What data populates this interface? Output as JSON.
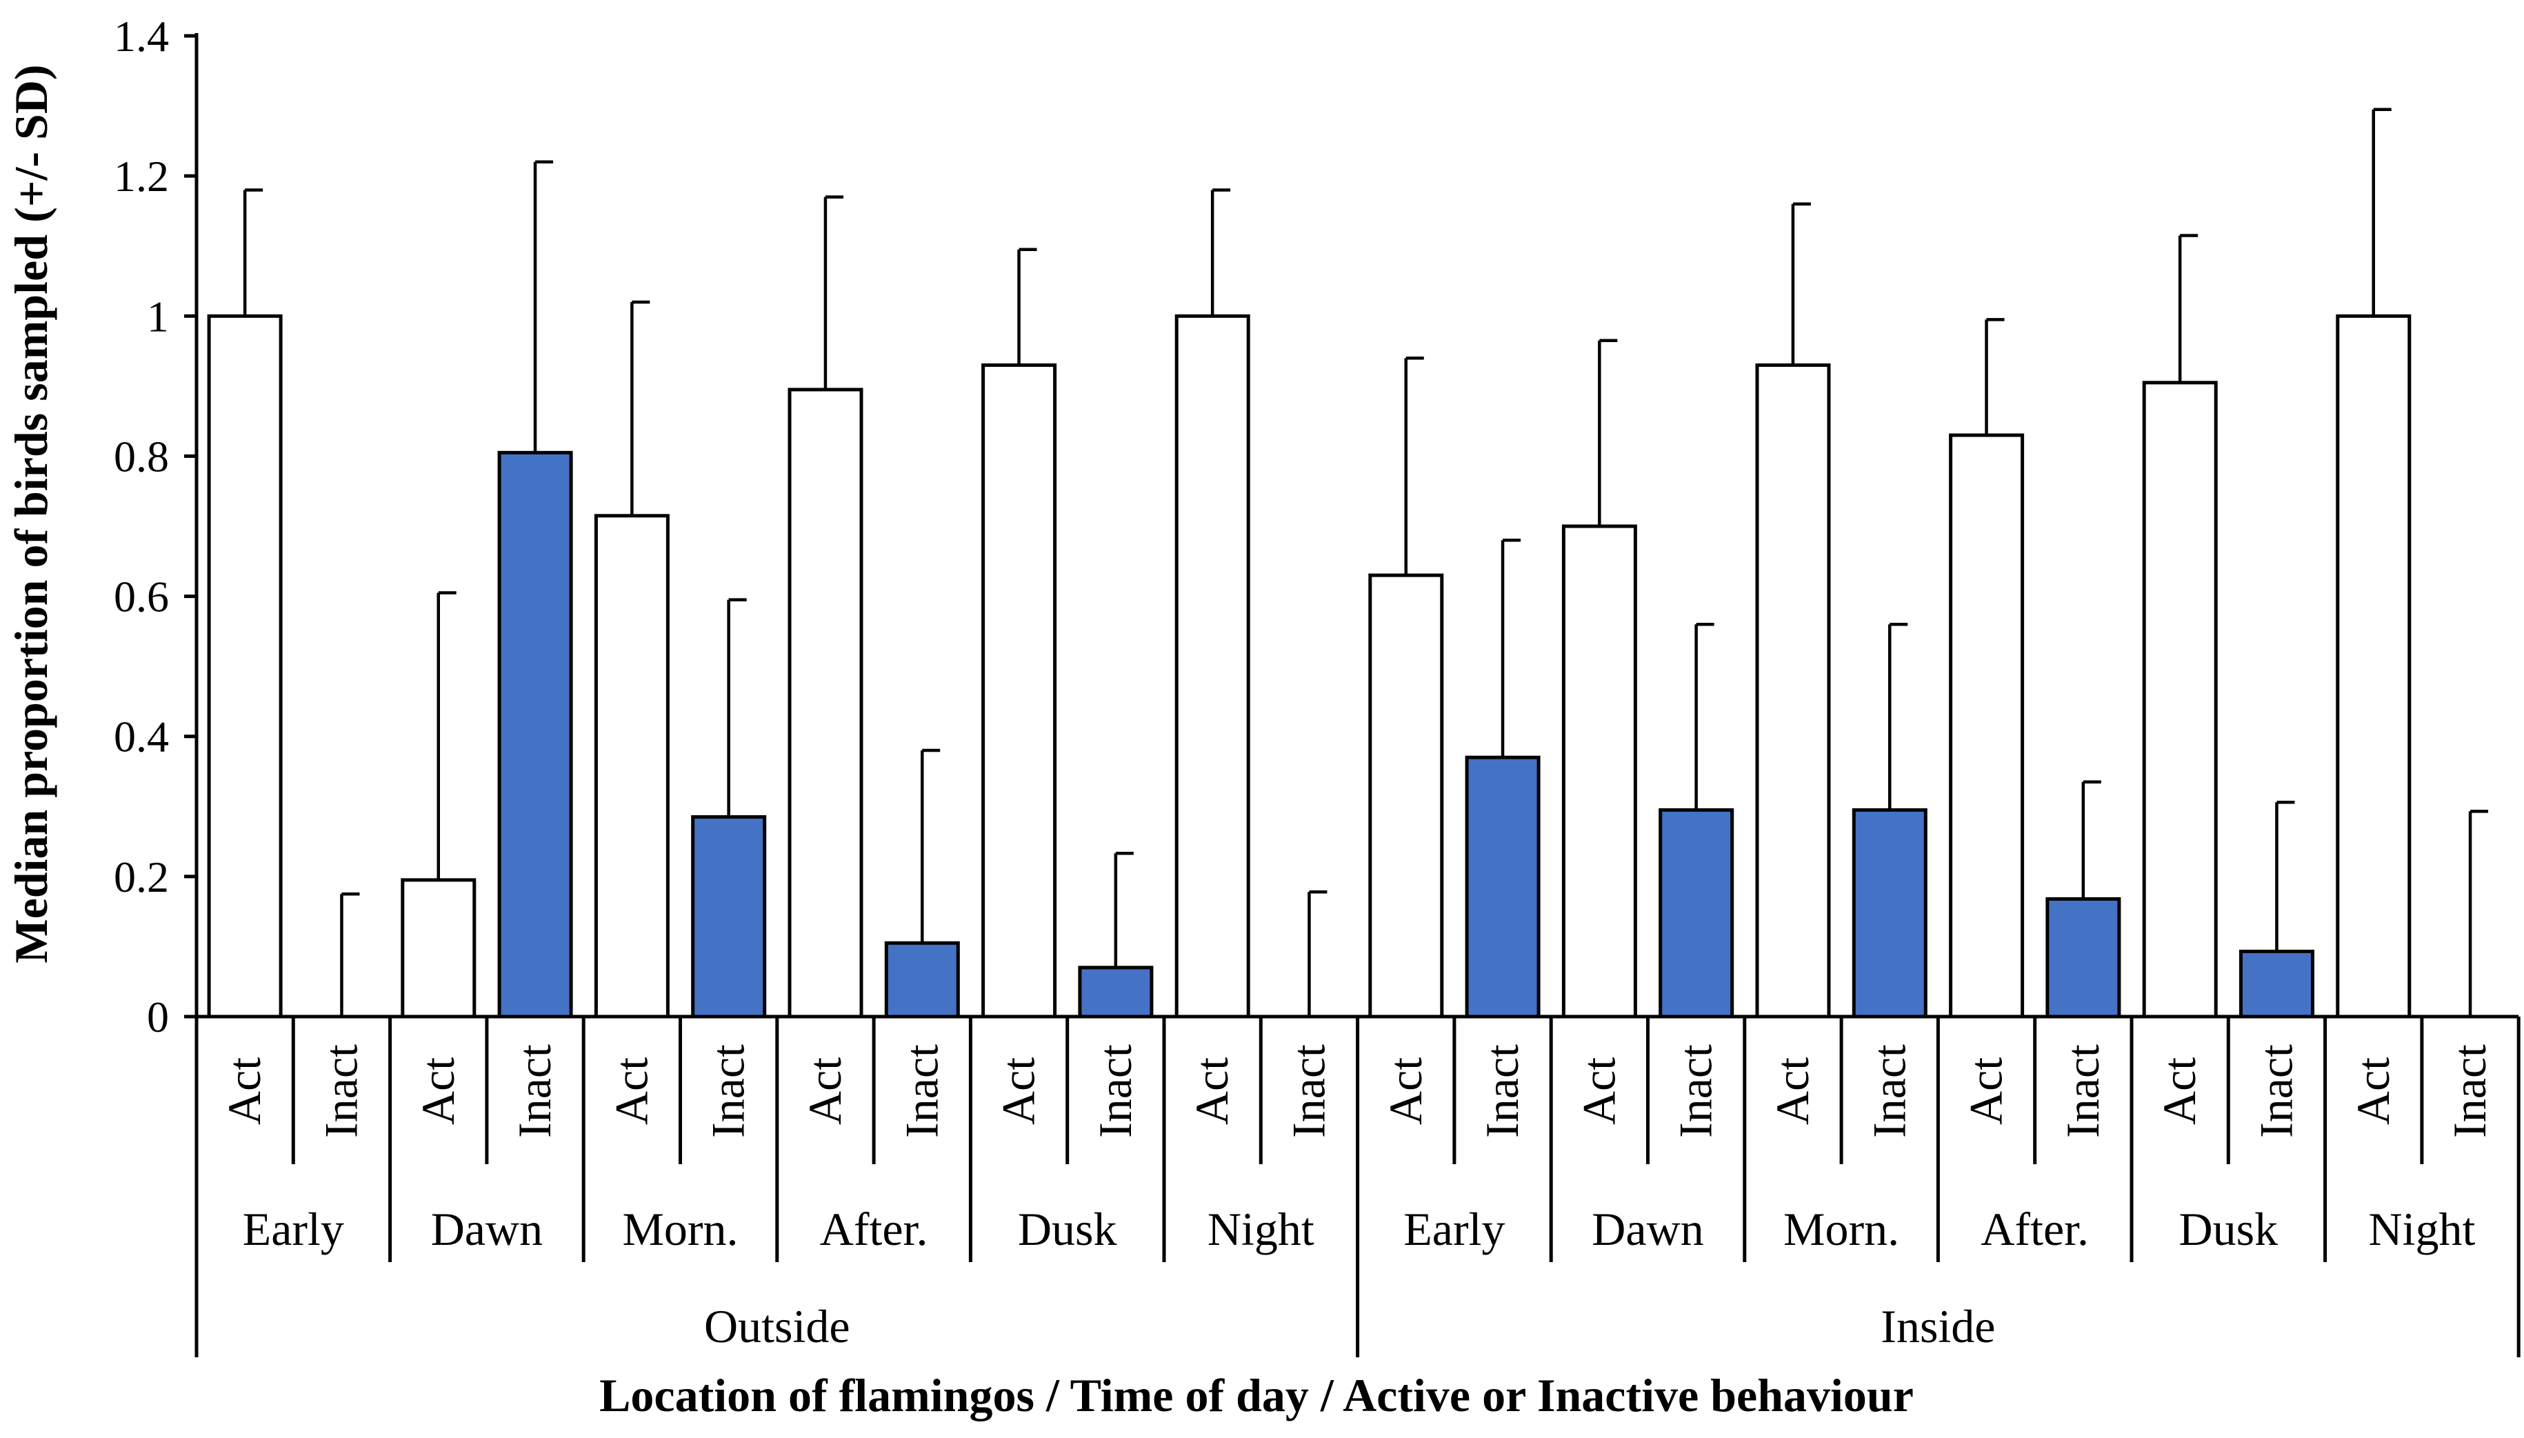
{
  "chart_data": {
    "type": "bar",
    "title": "",
    "ylabel": "Median proportion of birds sampled (+/- SD)",
    "xlabel": "Location of flamingos / Time of day / Active or Inactive behaviour",
    "ylim": [
      0,
      1.4
    ],
    "yticks": [
      "0",
      "0.2",
      "0.4",
      "0.6",
      "0.8",
      "1",
      "1.2",
      "1.4"
    ],
    "grid": false,
    "legend": "none",
    "colors": {
      "Act": "#ffffff",
      "Inact": "#4472c4",
      "stroke": "#000000"
    },
    "locations": [
      {
        "name": "Outside",
        "periods": [
          {
            "name": "Early",
            "bars": [
              {
                "behaviour": "Act",
                "value": 1.0,
                "sd": 0.18
              },
              {
                "behaviour": "Inact",
                "value": 0.0,
                "sd": 0.175
              }
            ]
          },
          {
            "name": "Dawn",
            "bars": [
              {
                "behaviour": "Act",
                "value": 0.195,
                "sd": 0.41
              },
              {
                "behaviour": "Inact",
                "value": 0.805,
                "sd": 0.415
              }
            ]
          },
          {
            "name": "Morn.",
            "bars": [
              {
                "behaviour": "Act",
                "value": 0.715,
                "sd": 0.305
              },
              {
                "behaviour": "Inact",
                "value": 0.285,
                "sd": 0.31
              }
            ]
          },
          {
            "name": "After.",
            "bars": [
              {
                "behaviour": "Act",
                "value": 0.895,
                "sd": 0.275
              },
              {
                "behaviour": "Inact",
                "value": 0.105,
                "sd": 0.275
              }
            ]
          },
          {
            "name": "Dusk",
            "bars": [
              {
                "behaviour": "Act",
                "value": 0.93,
                "sd": 0.165
              },
              {
                "behaviour": "Inact",
                "value": 0.07,
                "sd": 0.163
              }
            ]
          },
          {
            "name": "Night",
            "bars": [
              {
                "behaviour": "Act",
                "value": 1.0,
                "sd": 0.18
              },
              {
                "behaviour": "Inact",
                "value": 0.0,
                "sd": 0.178
              }
            ]
          }
        ]
      },
      {
        "name": "Inside",
        "periods": [
          {
            "name": "Early",
            "bars": [
              {
                "behaviour": "Act",
                "value": 0.63,
                "sd": 0.31
              },
              {
                "behaviour": "Inact",
                "value": 0.37,
                "sd": 0.31
              }
            ]
          },
          {
            "name": "Dawn",
            "bars": [
              {
                "behaviour": "Act",
                "value": 0.7,
                "sd": 0.265
              },
              {
                "behaviour": "Inact",
                "value": 0.295,
                "sd": 0.265
              }
            ]
          },
          {
            "name": "Morn.",
            "bars": [
              {
                "behaviour": "Act",
                "value": 0.93,
                "sd": 0.23
              },
              {
                "behaviour": "Inact",
                "value": 0.295,
                "sd": 0.265
              }
            ]
          },
          {
            "name": "After.",
            "bars": [
              {
                "behaviour": "Act",
                "value": 0.83,
                "sd": 0.165
              },
              {
                "behaviour": "Inact",
                "value": 0.168,
                "sd": 0.167
              }
            ]
          },
          {
            "name": "Dusk",
            "bars": [
              {
                "behaviour": "Act",
                "value": 0.905,
                "sd": 0.21
              },
              {
                "behaviour": "Inact",
                "value": 0.093,
                "sd": 0.213
              }
            ]
          },
          {
            "name": "Night",
            "bars": [
              {
                "behaviour": "Act",
                "value": 1.0,
                "sd": 0.295
              },
              {
                "behaviour": "Inact",
                "value": 0.0,
                "sd": 0.293
              }
            ]
          }
        ]
      }
    ]
  }
}
